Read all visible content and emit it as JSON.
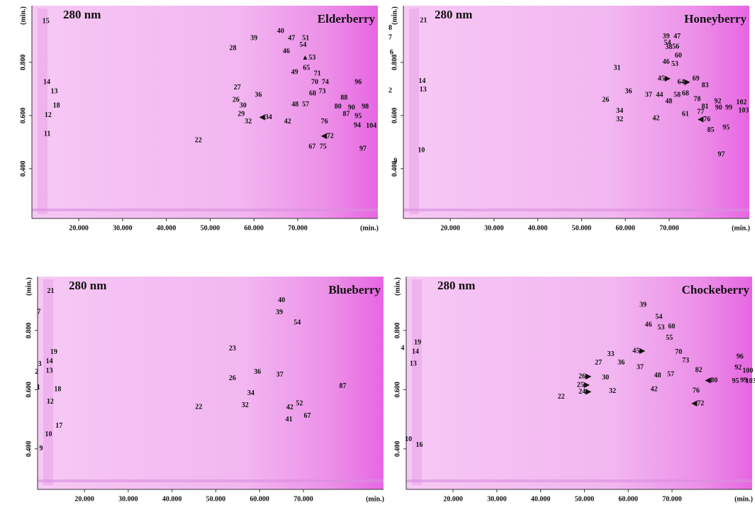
{
  "chart_data": [
    {
      "type": "peakmap",
      "title": "Elderberry",
      "subtitle": "280 nm",
      "xlabel": "(min.)",
      "ylabel": "(min.)",
      "xlim": [
        9.3,
        88.3
      ],
      "ylim": [
        0.213,
        1.013
      ],
      "xticks": [
        {
          "value": 20,
          "label": "20.000"
        },
        {
          "value": 30,
          "label": "30.000"
        },
        {
          "value": 40,
          "label": "40.000"
        },
        {
          "value": 50,
          "label": "50.000"
        },
        {
          "value": 60,
          "label": "60.000"
        },
        {
          "value": 70,
          "label": "70.000"
        }
      ],
      "yticks": [
        {
          "value": 0.4,
          "label": "0.400"
        },
        {
          "value": 0.6,
          "label": "0.600"
        },
        {
          "value": 0.8,
          "label": "0.800"
        }
      ],
      "peaks": [
        {
          "label": "15",
          "x": 12.5,
          "y": 0.954
        },
        {
          "label": "28",
          "x": 55.2,
          "y": 0.853
        },
        {
          "label": "39",
          "x": 60.0,
          "y": 0.89
        },
        {
          "label": "40",
          "x": 66.1,
          "y": 0.917
        },
        {
          "label": "47",
          "x": 68.6,
          "y": 0.89
        },
        {
          "label": "51",
          "x": 71.8,
          "y": 0.89
        },
        {
          "label": "54",
          "x": 71.2,
          "y": 0.864
        },
        {
          "label": "46",
          "x": 67.4,
          "y": 0.84
        },
        {
          "label": "▲53",
          "x": 72.5,
          "y": 0.816
        },
        {
          "label": "65",
          "x": 72.0,
          "y": 0.778
        },
        {
          "label": "49",
          "x": 69.3,
          "y": 0.762
        },
        {
          "label": "71",
          "x": 74.5,
          "y": 0.757
        },
        {
          "label": "70",
          "x": 73.9,
          "y": 0.725
        },
        {
          "label": "74",
          "x": 76.3,
          "y": 0.725
        },
        {
          "label": "73",
          "x": 75.6,
          "y": 0.69
        },
        {
          "label": "68",
          "x": 73.4,
          "y": 0.682
        },
        {
          "label": "14",
          "x": 12.7,
          "y": 0.725
        },
        {
          "label": "13",
          "x": 14.4,
          "y": 0.69
        },
        {
          "label": "27",
          "x": 56.2,
          "y": 0.704
        },
        {
          "label": "96",
          "x": 83.8,
          "y": 0.725
        },
        {
          "label": "88",
          "x": 80.6,
          "y": 0.666
        },
        {
          "label": "26",
          "x": 55.9,
          "y": 0.658
        },
        {
          "label": "36",
          "x": 61.0,
          "y": 0.677
        },
        {
          "label": "30",
          "x": 57.5,
          "y": 0.637
        },
        {
          "label": "18",
          "x": 14.9,
          "y": 0.637
        },
        {
          "label": "48",
          "x": 69.4,
          "y": 0.64
        },
        {
          "label": "57",
          "x": 71.8,
          "y": 0.64
        },
        {
          "label": "80",
          "x": 79.2,
          "y": 0.632
        },
        {
          "label": "90",
          "x": 82.3,
          "y": 0.629
        },
        {
          "label": "98",
          "x": 85.4,
          "y": 0.632
        },
        {
          "label": "87",
          "x": 81.1,
          "y": 0.605
        },
        {
          "label": "29",
          "x": 57.1,
          "y": 0.605
        },
        {
          "label": "◀34",
          "x": 62.7,
          "y": 0.592
        },
        {
          "label": "95",
          "x": 83.8,
          "y": 0.597
        },
        {
          "label": "12",
          "x": 13.0,
          "y": 0.6
        },
        {
          "label": "42",
          "x": 67.7,
          "y": 0.576
        },
        {
          "label": "76",
          "x": 76.1,
          "y": 0.576
        },
        {
          "label": "32",
          "x": 58.7,
          "y": 0.576
        },
        {
          "label": "94",
          "x": 83.6,
          "y": 0.562
        },
        {
          "label": "104",
          "x": 86.8,
          "y": 0.56
        },
        {
          "label": "◀72",
          "x": 76.8,
          "y": 0.522
        },
        {
          "label": "11",
          "x": 12.8,
          "y": 0.53
        },
        {
          "label": "22",
          "x": 47.3,
          "y": 0.506
        },
        {
          "label": "67",
          "x": 73.3,
          "y": 0.482
        },
        {
          "label": "75",
          "x": 75.8,
          "y": 0.482
        },
        {
          "label": "97",
          "x": 84.9,
          "y": 0.474
        }
      ]
    },
    {
      "type": "peakmap",
      "title": "Honeyberry",
      "subtitle": "280 nm",
      "xlabel": "(min.)",
      "ylabel": "(min.)",
      "xlim": [
        9.3,
        88.3
      ],
      "ylim": [
        0.213,
        1.013
      ],
      "xticks": [
        {
          "value": 20,
          "label": "20.000"
        },
        {
          "value": 30,
          "label": "30.000"
        },
        {
          "value": 40,
          "label": "40.000"
        },
        {
          "value": 50,
          "label": "50.000"
        },
        {
          "value": 60,
          "label": "60.000"
        },
        {
          "value": 70,
          "label": "70.000"
        }
      ],
      "yticks": [
        {
          "value": 0.4,
          "label": "0.400"
        },
        {
          "value": 0.6,
          "label": "0.600"
        },
        {
          "value": 0.8,
          "label": "0.800"
        }
      ],
      "peaks": [
        {
          "label": "21",
          "x": 13.9,
          "y": 0.957
        },
        {
          "label": "8",
          "x": 6.3,
          "y": 0.928
        },
        {
          "label": "7",
          "x": 6.3,
          "y": 0.893
        },
        {
          "label": "6",
          "x": 6.6,
          "y": 0.837
        },
        {
          "label": "2",
          "x": 6.3,
          "y": 0.693
        },
        {
          "label": "9",
          "x": 7.5,
          "y": 0.429
        },
        {
          "label": "14",
          "x": 13.6,
          "y": 0.728
        },
        {
          "label": "13",
          "x": 13.8,
          "y": 0.696
        },
        {
          "label": "10",
          "x": 13.4,
          "y": 0.469
        },
        {
          "label": "39",
          "x": 69.3,
          "y": 0.896
        },
        {
          "label": "47",
          "x": 71.8,
          "y": 0.896
        },
        {
          "label": "38",
          "x": 69.9,
          "y": 0.856
        },
        {
          "label": "54",
          "x": 69.6,
          "y": 0.872
        },
        {
          "label": "56",
          "x": 71.5,
          "y": 0.858
        },
        {
          "label": "60",
          "x": 72.1,
          "y": 0.824
        },
        {
          "label": "46",
          "x": 69.3,
          "y": 0.8
        },
        {
          "label": "53",
          "x": 71.3,
          "y": 0.792
        },
        {
          "label": "31",
          "x": 58.1,
          "y": 0.778
        },
        {
          "label": "45▶",
          "x": 68.8,
          "y": 0.738
        },
        {
          "label": "64▶",
          "x": 73.3,
          "y": 0.725
        },
        {
          "label": "69",
          "x": 76.1,
          "y": 0.738
        },
        {
          "label": "83",
          "x": 78.2,
          "y": 0.712
        },
        {
          "label": "36",
          "x": 60.7,
          "y": 0.69
        },
        {
          "label": "37",
          "x": 65.3,
          "y": 0.677
        },
        {
          "label": "44",
          "x": 67.8,
          "y": 0.677
        },
        {
          "label": "58",
          "x": 71.8,
          "y": 0.677
        },
        {
          "label": "68",
          "x": 73.7,
          "y": 0.682
        },
        {
          "label": "78",
          "x": 76.4,
          "y": 0.661
        },
        {
          "label": "26",
          "x": 55.5,
          "y": 0.658
        },
        {
          "label": "48",
          "x": 69.9,
          "y": 0.653
        },
        {
          "label": "92",
          "x": 81.1,
          "y": 0.653
        },
        {
          "label": "81",
          "x": 78.2,
          "y": 0.632
        },
        {
          "label": "102",
          "x": 86.5,
          "y": 0.648
        },
        {
          "label": "90",
          "x": 81.3,
          "y": 0.629
        },
        {
          "label": "99",
          "x": 83.6,
          "y": 0.629
        },
        {
          "label": "103",
          "x": 87.0,
          "y": 0.618
        },
        {
          "label": "34",
          "x": 58.7,
          "y": 0.616
        },
        {
          "label": "61",
          "x": 73.7,
          "y": 0.605
        },
        {
          "label": "77",
          "x": 77.2,
          "y": 0.613
        },
        {
          "label": "◀76",
          "x": 78.0,
          "y": 0.584
        },
        {
          "label": "32",
          "x": 58.7,
          "y": 0.584
        },
        {
          "label": "42",
          "x": 67.0,
          "y": 0.589
        },
        {
          "label": "95",
          "x": 83.0,
          "y": 0.554
        },
        {
          "label": "85",
          "x": 79.5,
          "y": 0.544
        },
        {
          "label": "97",
          "x": 81.9,
          "y": 0.453
        }
      ]
    },
    {
      "type": "peakmap",
      "title": "Blueberry",
      "subtitle": "280 nm",
      "xlabel": "(min.)",
      "ylabel": "(min.)",
      "xlim": [
        9.3,
        88.3
      ],
      "ylim": [
        0.263,
        0.982
      ],
      "xticks": [
        {
          "value": 20,
          "label": "20.000"
        },
        {
          "value": 30,
          "label": "30.000"
        },
        {
          "value": 40,
          "label": "40.000"
        },
        {
          "value": 50,
          "label": "50.000"
        },
        {
          "value": 60,
          "label": "60.000"
        },
        {
          "value": 70,
          "label": "70.000"
        }
      ],
      "yticks": [
        {
          "value": 0.4,
          "label": "0.400"
        },
        {
          "value": 0.6,
          "label": "0.600"
        },
        {
          "value": 0.8,
          "label": "0.800"
        }
      ],
      "peaks": [
        {
          "label": "21",
          "x": 12.3,
          "y": 0.932
        },
        {
          "label": "7",
          "x": 9.6,
          "y": 0.862
        },
        {
          "label": "40",
          "x": 65.0,
          "y": 0.901
        },
        {
          "label": "39",
          "x": 64.5,
          "y": 0.86
        },
        {
          "label": "54",
          "x": 68.6,
          "y": 0.826
        },
        {
          "label": "23",
          "x": 53.8,
          "y": 0.738
        },
        {
          "label": "19",
          "x": 13.0,
          "y": 0.726
        },
        {
          "label": "14",
          "x": 12.0,
          "y": 0.695
        },
        {
          "label": "3",
          "x": 9.8,
          "y": 0.685
        },
        {
          "label": "13",
          "x": 12.0,
          "y": 0.663
        },
        {
          "label": "2",
          "x": 9.1,
          "y": 0.659
        },
        {
          "label": "26",
          "x": 53.8,
          "y": 0.637
        },
        {
          "label": "36",
          "x": 59.5,
          "y": 0.659
        },
        {
          "label": "37",
          "x": 64.6,
          "y": 0.649
        },
        {
          "label": "1",
          "x": 9.5,
          "y": 0.606
        },
        {
          "label": "18",
          "x": 13.9,
          "y": 0.601
        },
        {
          "label": "87",
          "x": 79.0,
          "y": 0.611
        },
        {
          "label": "34",
          "x": 58.0,
          "y": 0.587
        },
        {
          "label": "12",
          "x": 12.2,
          "y": 0.558
        },
        {
          "label": "22",
          "x": 46.1,
          "y": 0.541
        },
        {
          "label": "32",
          "x": 56.7,
          "y": 0.546
        },
        {
          "label": "42",
          "x": 66.9,
          "y": 0.539
        },
        {
          "label": "52",
          "x": 69.1,
          "y": 0.553
        },
        {
          "label": "41",
          "x": 66.7,
          "y": 0.498
        },
        {
          "label": "67",
          "x": 70.9,
          "y": 0.51
        },
        {
          "label": "17",
          "x": 14.2,
          "y": 0.477
        },
        {
          "label": "10",
          "x": 11.8,
          "y": 0.448
        },
        {
          "label": "9",
          "x": 10.1,
          "y": 0.4
        }
      ]
    },
    {
      "type": "peakmap",
      "title": "Chockeberry",
      "subtitle": "280 nm",
      "xlabel": "(min.)",
      "ylabel": "(min.)",
      "xlim": [
        9.3,
        88.3
      ],
      "ylim": [
        0.263,
        0.982
      ],
      "xticks": [
        {
          "value": 20,
          "label": "20.000"
        },
        {
          "value": 30,
          "label": "30.000"
        },
        {
          "value": 40,
          "label": "40.000"
        },
        {
          "value": 50,
          "label": "50.000"
        },
        {
          "value": 60,
          "label": "60.000"
        },
        {
          "value": 70,
          "label": "70.000"
        }
      ],
      "yticks": [
        {
          "value": 0.4,
          "label": "0.400"
        },
        {
          "value": 0.6,
          "label": "0.600"
        },
        {
          "value": 0.8,
          "label": "0.800"
        }
      ],
      "peaks": [
        {
          "label": "19",
          "x": 11.9,
          "y": 0.759
        },
        {
          "label": "4",
          "x": 8.5,
          "y": 0.74
        },
        {
          "label": "14",
          "x": 11.4,
          "y": 0.728
        },
        {
          "label": "13",
          "x": 10.9,
          "y": 0.687
        },
        {
          "label": "10",
          "x": 9.8,
          "y": 0.431
        },
        {
          "label": "16",
          "x": 12.3,
          "y": 0.412
        },
        {
          "label": "39",
          "x": 63.4,
          "y": 0.886
        },
        {
          "label": "54",
          "x": 67.0,
          "y": 0.845
        },
        {
          "label": "46",
          "x": 64.6,
          "y": 0.819
        },
        {
          "label": "53",
          "x": 67.5,
          "y": 0.809
        },
        {
          "label": "60",
          "x": 69.9,
          "y": 0.812
        },
        {
          "label": "55",
          "x": 69.4,
          "y": 0.774
        },
        {
          "label": "45▶",
          "x": 62.4,
          "y": 0.73
        },
        {
          "label": "70",
          "x": 71.5,
          "y": 0.726
        },
        {
          "label": "96",
          "x": 85.5,
          "y": 0.711
        },
        {
          "label": "33",
          "x": 56.0,
          "y": 0.719
        },
        {
          "label": "27",
          "x": 53.2,
          "y": 0.69
        },
        {
          "label": "73",
          "x": 73.1,
          "y": 0.697
        },
        {
          "label": "92",
          "x": 85.1,
          "y": 0.673
        },
        {
          "label": "36",
          "x": 58.4,
          "y": 0.69
        },
        {
          "label": "37",
          "x": 62.7,
          "y": 0.675
        },
        {
          "label": "82",
          "x": 76.1,
          "y": 0.665
        },
        {
          "label": "100",
          "x": 87.3,
          "y": 0.663
        },
        {
          "label": "26▶",
          "x": 50.1,
          "y": 0.644
        },
        {
          "label": "30",
          "x": 54.8,
          "y": 0.64
        },
        {
          "label": "48",
          "x": 66.7,
          "y": 0.647
        },
        {
          "label": "57",
          "x": 69.7,
          "y": 0.651
        },
        {
          "label": "◀80",
          "x": 79.0,
          "y": 0.63
        },
        {
          "label": "95",
          "x": 84.5,
          "y": 0.628
        },
        {
          "label": "99",
          "x": 86.4,
          "y": 0.63
        },
        {
          "label": "103",
          "x": 88.0,
          "y": 0.628
        },
        {
          "label": "25▶",
          "x": 49.7,
          "y": 0.615
        },
        {
          "label": "24▶",
          "x": 50.1,
          "y": 0.592
        },
        {
          "label": "42",
          "x": 65.9,
          "y": 0.601
        },
        {
          "label": "76",
          "x": 75.5,
          "y": 0.596
        },
        {
          "label": "22",
          "x": 44.7,
          "y": 0.575
        },
        {
          "label": "32",
          "x": 56.4,
          "y": 0.594
        },
        {
          "label": "◀72",
          "x": 75.9,
          "y": 0.553
        }
      ]
    }
  ]
}
